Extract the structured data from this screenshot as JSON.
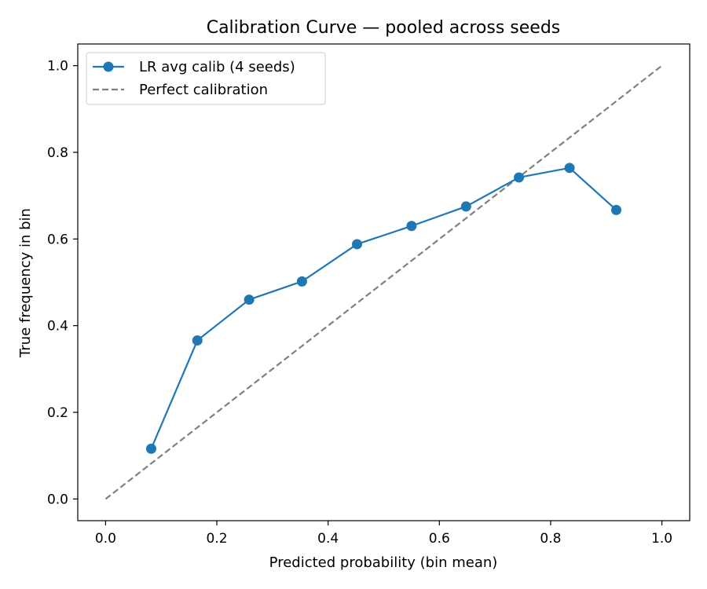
{
  "chart_data": {
    "type": "line",
    "title": "Calibration Curve — pooled across seeds",
    "xlabel": "Predicted probability (bin mean)",
    "ylabel": "True frequency in bin",
    "xlim": [
      -0.05,
      1.05
    ],
    "ylim": [
      -0.05,
      1.05
    ],
    "xticks": [
      "0.0",
      "0.2",
      "0.4",
      "0.6",
      "0.8",
      "1.0"
    ],
    "yticks": [
      "0.0",
      "0.2",
      "0.4",
      "0.6",
      "0.8",
      "1.0"
    ],
    "grid": false,
    "legend_position": "top-left",
    "series": [
      {
        "name": "LR avg calib (4 seeds)",
        "style": "solid-with-markers",
        "color": "#1f77b4",
        "x": [
          0.082,
          0.165,
          0.258,
          0.353,
          0.452,
          0.55,
          0.648,
          0.743,
          0.834,
          0.918
        ],
        "y": [
          0.116,
          0.366,
          0.46,
          0.502,
          0.588,
          0.63,
          0.675,
          0.742,
          0.764,
          0.667
        ]
      },
      {
        "name": "Perfect calibration",
        "style": "dashed",
        "color": "#808080",
        "x": [
          0.0,
          1.0
        ],
        "y": [
          0.0,
          1.0
        ]
      }
    ]
  }
}
